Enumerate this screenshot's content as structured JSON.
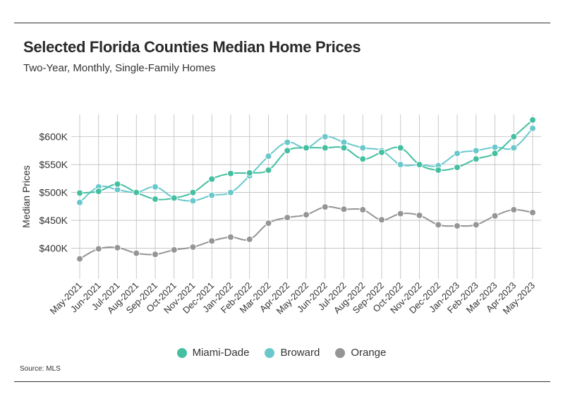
{
  "header": {
    "title": "Selected Florida Counties Median Home Prices",
    "subtitle": "Two-Year, Monthly, Single-Family Homes"
  },
  "footer": {
    "source": "Source: MLS"
  },
  "colors": {
    "miami": "#45bfa1",
    "broward": "#6ac8cc",
    "orange": "#959595",
    "grid": "#bdbdbd"
  },
  "chart_data": {
    "type": "line",
    "title": "Selected Florida Counties Median Home Prices",
    "subtitle": "Two-Year, Monthly, Single-Family Homes",
    "xlabel": "",
    "ylabel": "Median Prices",
    "ylim": [
      345000,
      640000
    ],
    "y_ticks": [
      400000,
      450000,
      500000,
      550000,
      600000
    ],
    "y_tick_labels": [
      "$400K",
      "$450K",
      "$500K",
      "$550K",
      "$600K"
    ],
    "categories": [
      "May-2021",
      "Jun-2021",
      "Jul-2021",
      "Aug-2021",
      "Sep-2021",
      "Oct-2021",
      "Nov-2021",
      "Dec-2021",
      "Jan-2022",
      "Feb-2022",
      "Mar-2022",
      "Apr-2022",
      "May-2022",
      "Jun-2022",
      "Jul-2022",
      "Aug-2022",
      "Sep-2022",
      "Oct-2022",
      "Nov-2022",
      "Dec-2022",
      "Jan-2023",
      "Feb-2023",
      "Mar-2023",
      "Apr-2023",
      "May-2023"
    ],
    "grid": true,
    "legend_position": "bottom-center",
    "series": [
      {
        "name": "Miami-Dade",
        "color": "#45bfa1",
        "values": [
          499000,
          502000,
          515000,
          500000,
          488000,
          490000,
          500000,
          524000,
          534000,
          535000,
          540000,
          575000,
          580000,
          580000,
          580000,
          560000,
          572000,
          580000,
          550000,
          540000,
          545000,
          560000,
          570000,
          600000,
          630000
        ]
      },
      {
        "name": "Broward",
        "color": "#6ac8cc",
        "values": [
          482000,
          510000,
          505000,
          500000,
          510000,
          490000,
          485000,
          495000,
          500000,
          530000,
          565000,
          590000,
          580000,
          600000,
          590000,
          580000,
          575000,
          550000,
          550000,
          548000,
          570000,
          575000,
          581000,
          580000,
          615000
        ]
      },
      {
        "name": "Orange",
        "color": "#959595",
        "values": [
          381000,
          399000,
          401000,
          391000,
          389000,
          397000,
          402000,
          413000,
          420000,
          416000,
          445000,
          455000,
          460000,
          474000,
          470000,
          469000,
          451000,
          462000,
          459000,
          442000,
          440000,
          442000,
          458000,
          469000,
          464000
        ]
      }
    ]
  }
}
